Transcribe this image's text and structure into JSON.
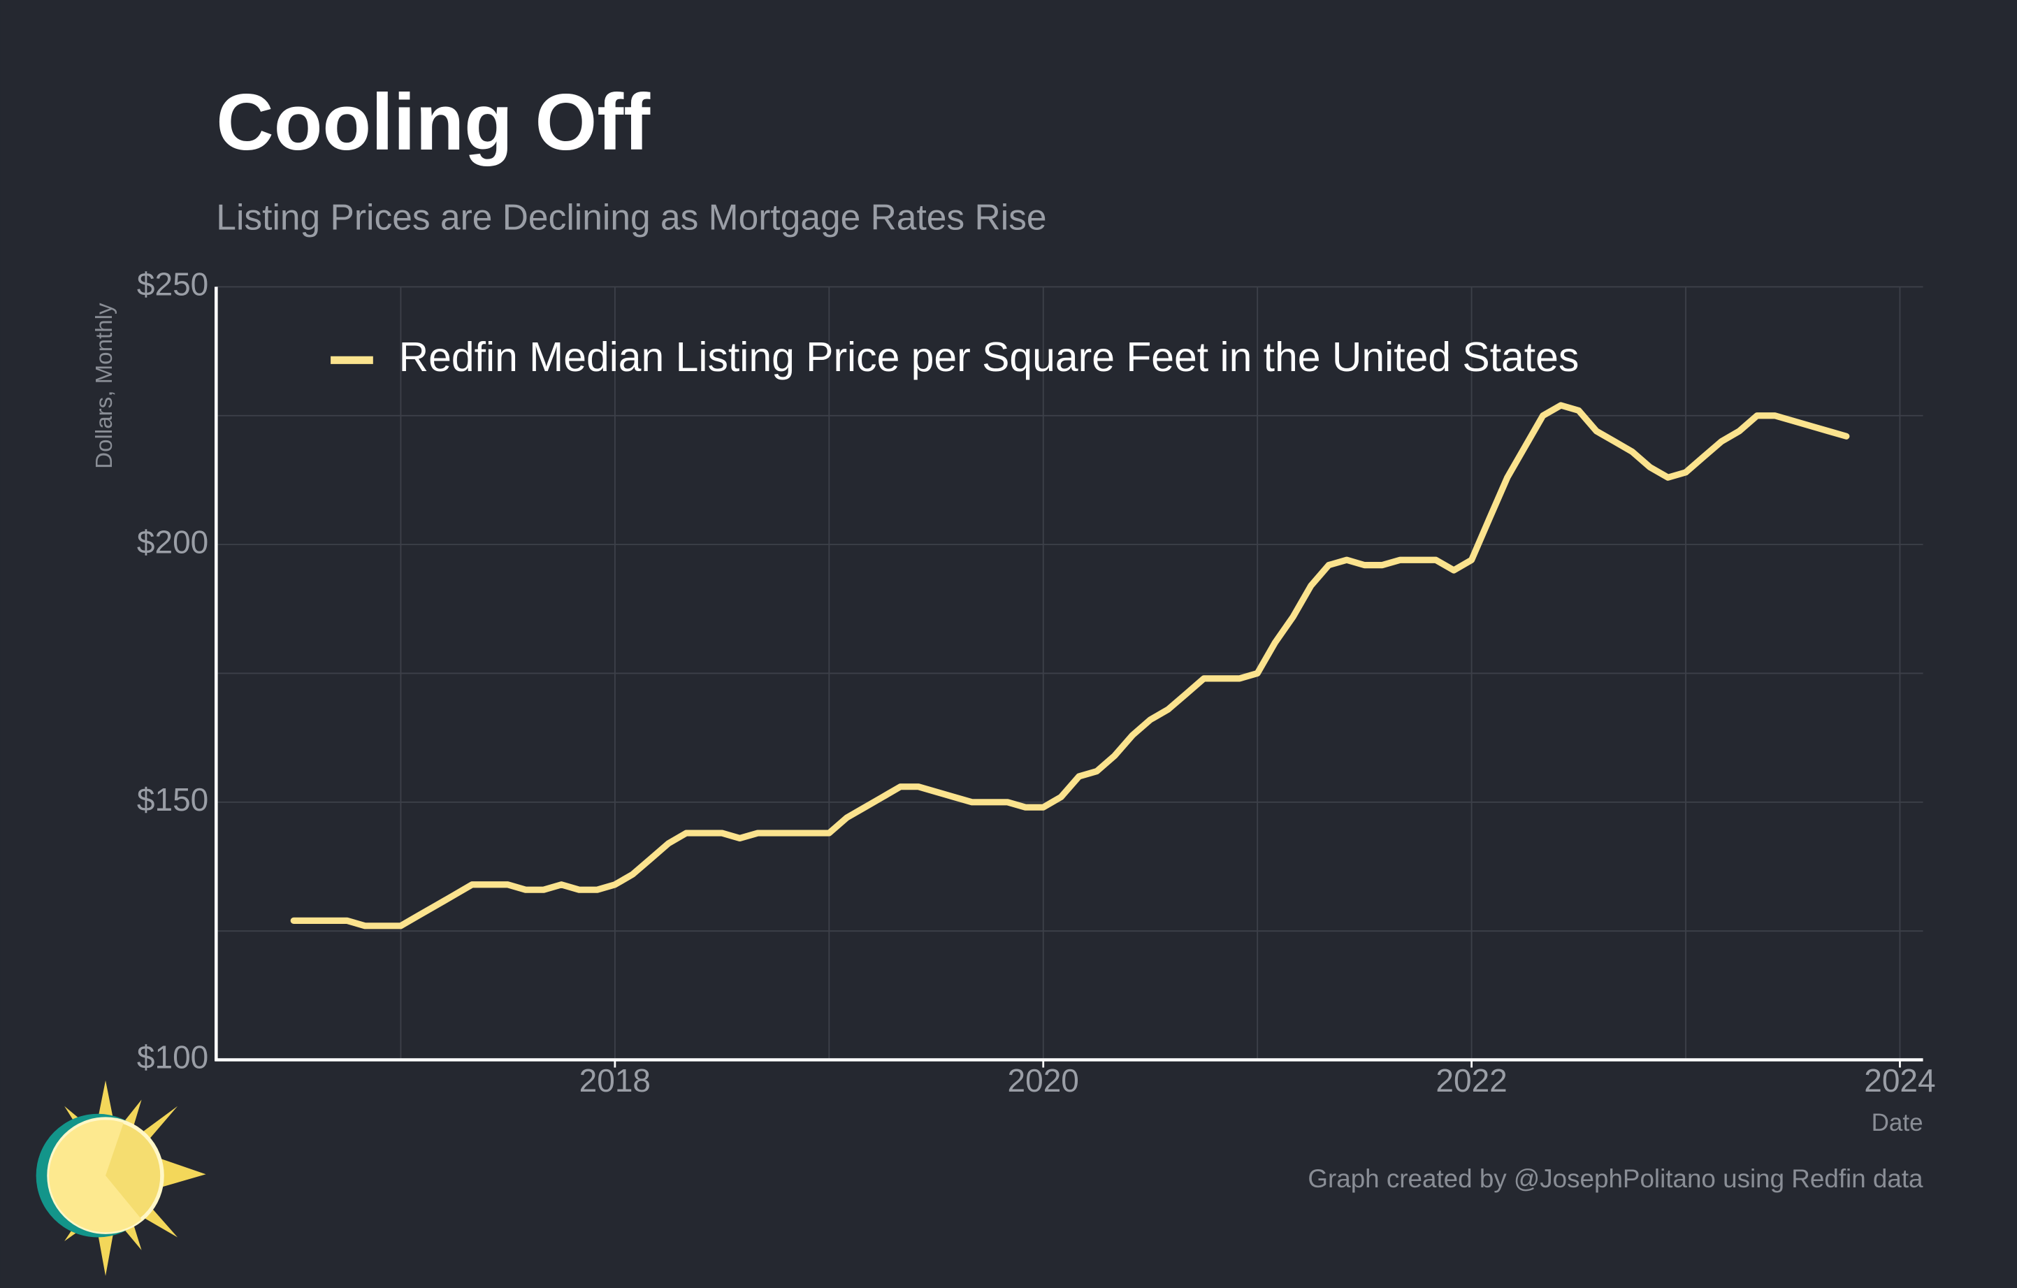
{
  "chart_data": {
    "type": "line",
    "title": "Cooling Off",
    "subtitle": "Listing Prices are Declining as Mortgage Rates Rise",
    "y_label": "Dollars, Monthly",
    "x_label": "Date",
    "caption": "Graph created by @JosephPolitano using Redfin data",
    "legend_position": "top-left",
    "grid": true,
    "xlim": [
      2016.138,
      2024.108
    ],
    "ylim": [
      100,
      250
    ],
    "xticks": [
      2018,
      2020,
      2022,
      2024
    ],
    "xgrid_minor": [
      2017,
      2019,
      2021,
      2023
    ],
    "yticks": [
      {
        "value": 100,
        "label": "$100"
      },
      {
        "value": 150,
        "label": "$150"
      },
      {
        "value": 200,
        "label": "$200"
      },
      {
        "value": 250,
        "label": "$250"
      }
    ],
    "ygrid_minor": [
      125,
      175,
      225
    ],
    "x": [
      2016.5,
      2016.583,
      2016.667,
      2016.75,
      2016.833,
      2016.917,
      2017,
      2017.083,
      2017.167,
      2017.25,
      2017.333,
      2017.417,
      2017.5,
      2017.583,
      2017.667,
      2017.75,
      2017.833,
      2017.917,
      2018,
      2018.083,
      2018.167,
      2018.25,
      2018.333,
      2018.417,
      2018.5,
      2018.583,
      2018.667,
      2018.75,
      2018.833,
      2018.917,
      2019,
      2019.083,
      2019.167,
      2019.25,
      2019.333,
      2019.417,
      2019.5,
      2019.583,
      2019.667,
      2019.75,
      2019.833,
      2019.917,
      2020,
      2020.083,
      2020.167,
      2020.25,
      2020.333,
      2020.417,
      2020.5,
      2020.583,
      2020.667,
      2020.75,
      2020.833,
      2020.917,
      2021,
      2021.083,
      2021.167,
      2021.25,
      2021.333,
      2021.417,
      2021.5,
      2021.583,
      2021.667,
      2021.75,
      2021.833,
      2021.917,
      2022,
      2022.083,
      2022.167,
      2022.25,
      2022.333,
      2022.417,
      2022.5,
      2022.583,
      2022.667,
      2022.75,
      2022.833,
      2022.917,
      2023,
      2023.083,
      2023.167,
      2023.25,
      2023.333,
      2023.417,
      2023.5,
      2023.583,
      2023.667,
      2023.75
    ],
    "series": [
      {
        "name": "Redfin Median Listing Price per Square Feet in the United States",
        "color": "#fbe38e",
        "values": [
          127,
          127,
          127,
          127,
          126,
          126,
          126,
          128,
          130,
          132,
          134,
          134,
          134,
          133,
          133,
          134,
          133,
          133,
          134,
          136,
          139,
          142,
          144,
          144,
          144,
          143,
          144,
          144,
          144,
          144,
          144,
          147,
          149,
          151,
          153,
          153,
          152,
          151,
          150,
          150,
          150,
          149,
          149,
          151,
          155,
          156,
          159,
          163,
          166,
          168,
          171,
          174,
          174,
          174,
          175,
          181,
          186,
          192,
          196,
          197,
          196,
          196,
          197,
          197,
          197,
          195,
          197,
          205,
          213,
          219,
          225,
          227,
          226,
          222,
          220,
          218,
          215,
          213,
          214,
          217,
          220,
          222,
          225,
          225,
          224,
          223,
          222,
          221
        ]
      }
    ]
  }
}
